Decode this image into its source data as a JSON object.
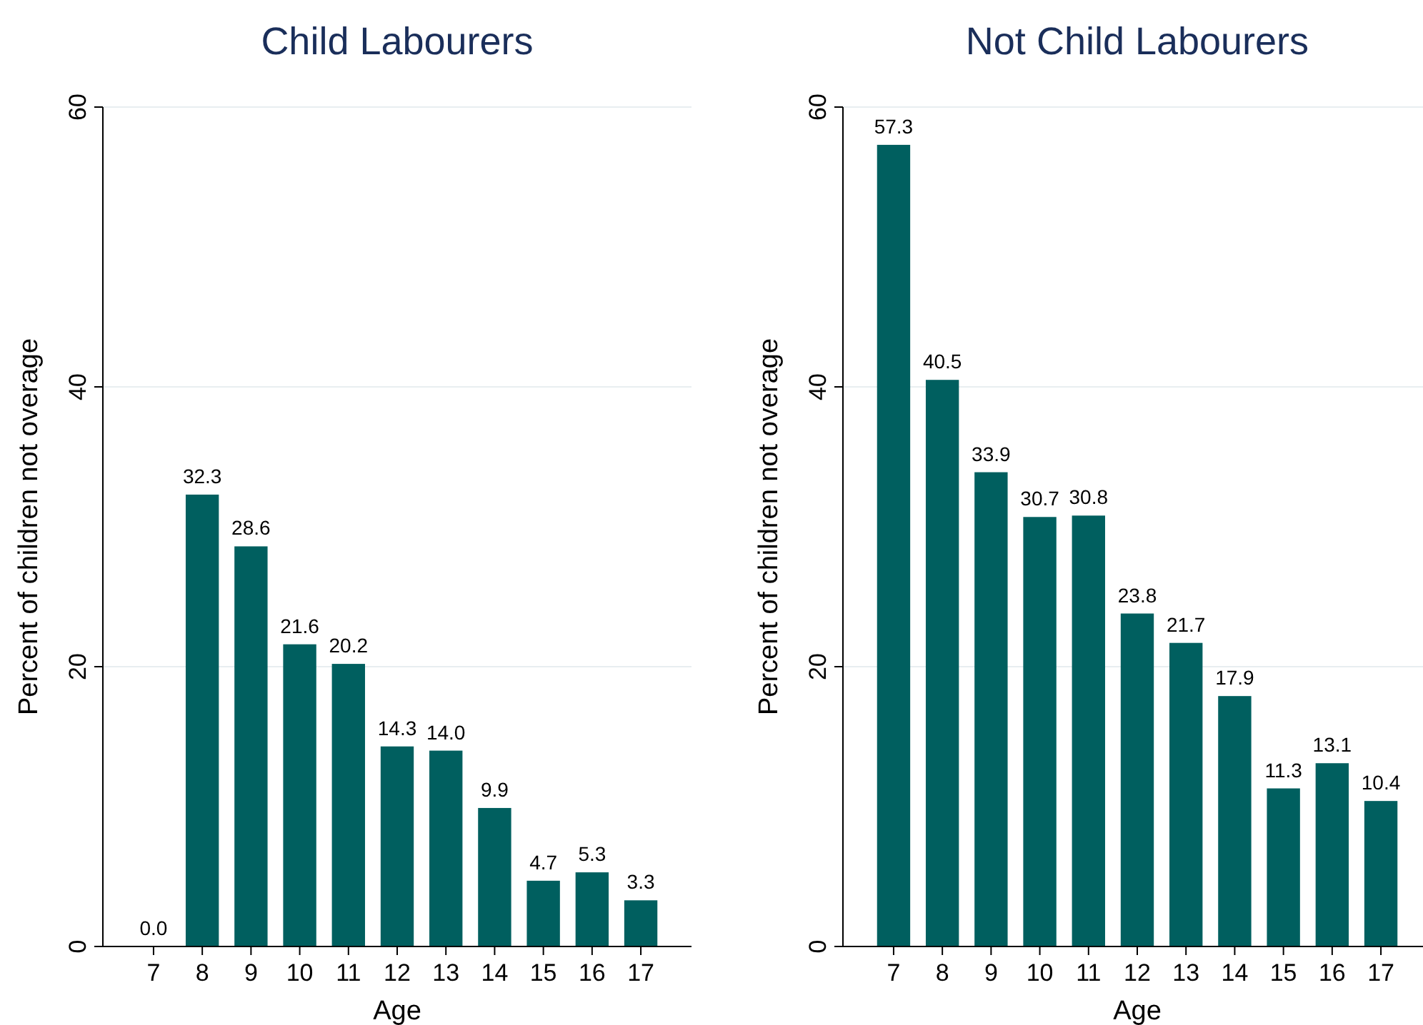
{
  "chart_data": [
    {
      "type": "bar",
      "title": "Child Labourers",
      "xlabel": "Age",
      "ylabel": "Percent of children not overage",
      "categories": [
        "7",
        "8",
        "9",
        "10",
        "11",
        "12",
        "13",
        "14",
        "15",
        "16",
        "17"
      ],
      "values": [
        0.0,
        32.3,
        28.6,
        21.6,
        20.2,
        14.3,
        14.0,
        9.9,
        4.7,
        5.3,
        3.3
      ],
      "value_labels": [
        "0.0",
        "32.3",
        "28.6",
        "21.6",
        "20.2",
        "14.3",
        "14.0",
        "9.9",
        "4.7",
        "5.3",
        "3.3"
      ],
      "color": "#005f5f",
      "ylim": [
        0,
        60
      ],
      "yticks": [
        0,
        20,
        40,
        60
      ],
      "grid": "y"
    },
    {
      "type": "bar",
      "title": "Not Child Labourers",
      "xlabel": "Age",
      "ylabel": "Percent of children not overage",
      "categories": [
        "7",
        "8",
        "9",
        "10",
        "11",
        "12",
        "13",
        "14",
        "15",
        "16",
        "17"
      ],
      "values": [
        57.3,
        40.5,
        33.9,
        30.7,
        30.8,
        23.8,
        21.7,
        17.9,
        11.3,
        13.1,
        10.4
      ],
      "value_labels": [
        "57.3",
        "40.5",
        "33.9",
        "30.7",
        "30.8",
        "23.8",
        "21.7",
        "17.9",
        "11.3",
        "13.1",
        "10.4"
      ],
      "color": "#005f5f",
      "ylim": [
        0,
        60
      ],
      "yticks": [
        0,
        20,
        40,
        60
      ],
      "grid": "y"
    }
  ]
}
